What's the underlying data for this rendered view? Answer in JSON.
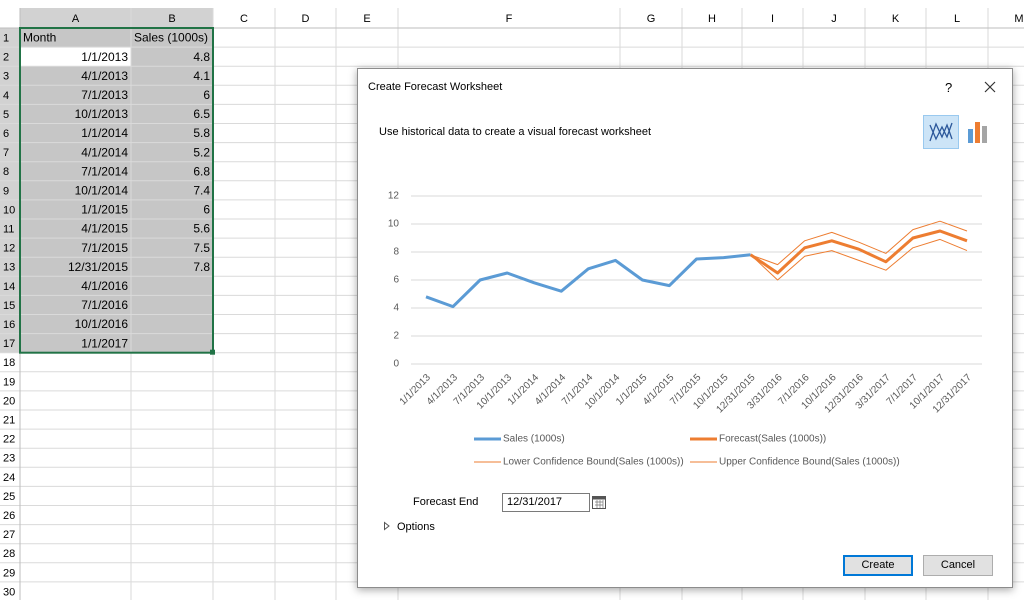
{
  "sheet": {
    "columns": [
      "A",
      "B",
      "C",
      "D",
      "E",
      "F",
      "G",
      "H",
      "I",
      "J",
      "K",
      "L",
      "M"
    ],
    "row_numbers": [
      1,
      2,
      3,
      4,
      5,
      6,
      7,
      8,
      9,
      10,
      11,
      12,
      13,
      14,
      15,
      16,
      17,
      18,
      19,
      20,
      21,
      22,
      23,
      24,
      25,
      26,
      27,
      28,
      29,
      30
    ],
    "rows": [
      [
        "Month",
        "Sales (1000s)"
      ],
      [
        "1/1/2013",
        4.8
      ],
      [
        "4/1/2013",
        4.1
      ],
      [
        "7/1/2013",
        6
      ],
      [
        "10/1/2013",
        6.5
      ],
      [
        "1/1/2014",
        5.8
      ],
      [
        "4/1/2014",
        5.2
      ],
      [
        "7/1/2014",
        6.8
      ],
      [
        "10/1/2014",
        7.4
      ],
      [
        "1/1/2015",
        6
      ],
      [
        "4/1/2015",
        5.6
      ],
      [
        "7/1/2015",
        7.5
      ],
      [
        "12/31/2015",
        7.8
      ],
      [
        "4/1/2016"
      ],
      [
        "7/1/2016"
      ],
      [
        "10/1/2016"
      ],
      [
        "1/1/2017"
      ]
    ]
  },
  "dialog": {
    "title": "Create Forecast Worksheet",
    "help": "?",
    "subtitle": "Use historical data to create a visual forecast worksheet",
    "forecast_end": {
      "label": "Forecast End",
      "value": "12/31/2017"
    },
    "options": "Options",
    "buttons": [
      "Create",
      "Cancel"
    ]
  },
  "chart_data": {
    "type": "line",
    "categories": [
      "1/1/2013",
      "4/1/2013",
      "7/1/2013",
      "10/1/2013",
      "1/1/2014",
      "4/1/2014",
      "7/1/2014",
      "10/1/2014",
      "1/1/2015",
      "4/1/2015",
      "7/1/2015",
      "10/1/2015",
      "12/31/2015",
      "3/31/2016",
      "7/1/2016",
      "10/1/2016",
      "12/31/2016",
      "3/31/2017",
      "7/1/2017",
      "10/1/2017",
      "12/31/2017"
    ],
    "series": [
      {
        "name": "Sales (1000s)",
        "color": "#5b9bd5",
        "values": [
          4.8,
          4.1,
          6,
          6.5,
          5.8,
          5.2,
          6.8,
          7.4,
          6,
          5.6,
          7.5,
          7.6,
          7.8,
          null,
          null,
          null,
          null,
          null,
          null,
          null,
          null
        ]
      },
      {
        "name": "Forecast(Sales (1000s))",
        "color": "#ed7d31",
        "values": [
          null,
          null,
          null,
          null,
          null,
          null,
          null,
          null,
          null,
          null,
          null,
          null,
          7.8,
          6.5,
          8.3,
          8.8,
          8.2,
          7.3,
          9.0,
          9.5,
          8.8
        ]
      },
      {
        "name": "Lower Confidence Bound(Sales (1000s))",
        "color": "#ed7d31",
        "values": [
          null,
          null,
          null,
          null,
          null,
          null,
          null,
          null,
          null,
          null,
          null,
          null,
          7.8,
          6.0,
          7.7,
          8.1,
          7.4,
          6.7,
          8.3,
          8.9,
          8.1
        ]
      },
      {
        "name": "Upper Confidence Bound(Sales (1000s))",
        "color": "#ed7d31",
        "values": [
          null,
          null,
          null,
          null,
          null,
          null,
          null,
          null,
          null,
          null,
          null,
          null,
          7.8,
          7.1,
          8.8,
          9.4,
          8.7,
          7.9,
          9.6,
          10.2,
          9.5
        ]
      }
    ],
    "ylim": [
      0,
      12
    ],
    "yticks": [
      0,
      2,
      4,
      6,
      8,
      10,
      12
    ],
    "grid": true
  }
}
